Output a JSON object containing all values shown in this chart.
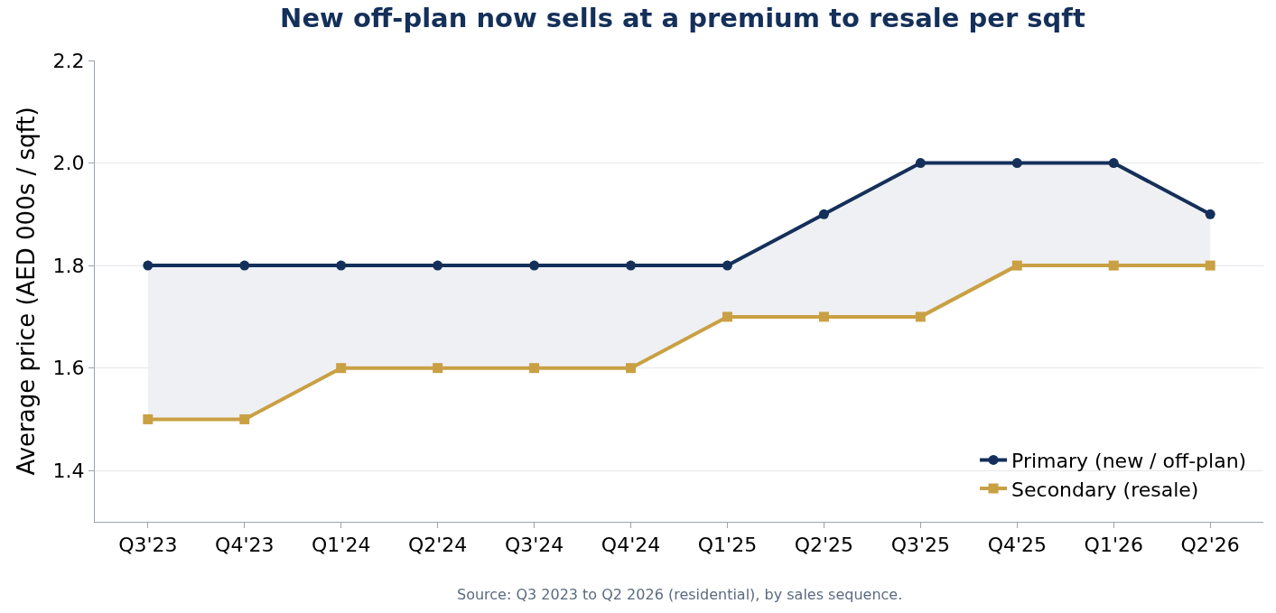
{
  "chart_data": {
    "type": "line",
    "title": "New off-plan now sells at a premium to resale per sqft",
    "ylabel": "Average price (AED 000s / sqft)",
    "categories": [
      "Q3'23",
      "Q4'23",
      "Q1'24",
      "Q2'24",
      "Q3'24",
      "Q4'24",
      "Q1'25",
      "Q2'25",
      "Q3'25",
      "Q4'25",
      "Q1'26",
      "Q2'26"
    ],
    "series": [
      {
        "name": "Primary (new / off-plan)",
        "color": "#14305a",
        "marker": "circle",
        "values": [
          1.8,
          1.8,
          1.8,
          1.8,
          1.8,
          1.8,
          1.8,
          1.9,
          2.0,
          2.0,
          2.0,
          1.9
        ],
        "lower": [
          1.5,
          1.5,
          1.6,
          1.6,
          1.6,
          1.6,
          1.7,
          1.7,
          1.7,
          1.8,
          1.8,
          1.8
        ],
        "upper": [
          1.8,
          1.8,
          1.8,
          1.8,
          1.8,
          1.8,
          1.8,
          1.9,
          2.0,
          2.0,
          2.0,
          1.9
        ]
      },
      {
        "name": "Secondary (resale)",
        "color": "#c9a043",
        "marker": "square",
        "values": [
          1.5,
          1.5,
          1.6,
          1.6,
          1.6,
          1.6,
          1.7,
          1.7,
          1.7,
          1.8,
          1.8,
          1.8
        ]
      }
    ],
    "ylim": [
      1.3,
      2.2
    ],
    "yticks": [
      1.4,
      1.6,
      1.8,
      {
        "value": 2,
        "label": "2.0"
      },
      2.2
    ],
    "grid": "y",
    "legend": "bottom right",
    "line_style": "solid",
    "annotations": [
      "Source: Q3 2023 to Q2 2026 (residential), by sales sequence."
    ]
  }
}
